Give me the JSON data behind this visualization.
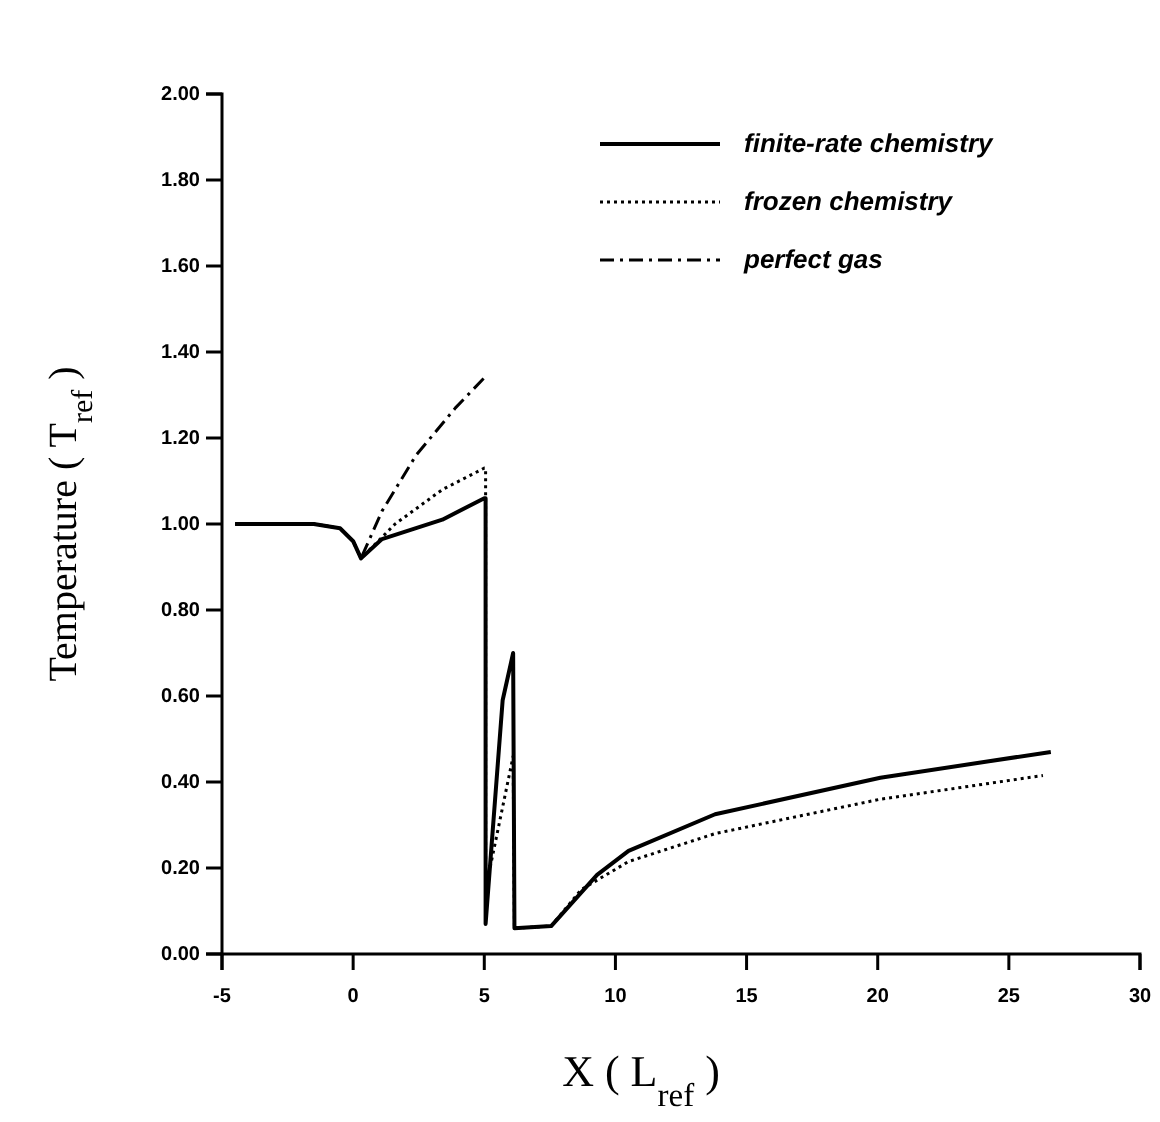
{
  "chart_data": {
    "type": "line",
    "xlabel": "X ( L$_{ref}$ )",
    "ylabel": "Temperature ( T$_{ref}$ )",
    "xlim": [
      -5,
      30
    ],
    "xticks": [
      -5,
      0,
      5,
      10,
      15,
      20,
      25,
      30
    ],
    "ylim": [
      0,
      2
    ],
    "yticks": [
      {
        "value": 0,
        "label": "0.00"
      },
      {
        "value": 0.2,
        "label": "0.20"
      },
      {
        "value": 0.4,
        "label": "0.40"
      },
      {
        "value": 0.6,
        "label": "0.60"
      },
      {
        "value": 0.8,
        "label": "0.80"
      },
      {
        "value": 1,
        "label": "1.00"
      },
      {
        "value": 1.2,
        "label": "1.20"
      },
      {
        "value": 1.4,
        "label": "1.40"
      },
      {
        "value": 1.6,
        "label": "1.60"
      },
      {
        "value": 1.8,
        "label": "1.80"
      },
      {
        "value": 2,
        "label": "2.00"
      }
    ],
    "grid": false,
    "legend": "top right",
    "marker": "none",
    "series": [
      {
        "name": "finite-rate chemistry",
        "color": "#000000",
        "line_style": "solid",
        "x": [
          -4.5,
          -1.5,
          -0.5,
          0,
          0.3,
          1.1,
          3.4,
          5,
          5.05,
          5.05,
          5.7,
          6.1,
          6.15,
          7.55,
          9.3,
          10.5,
          13.8,
          20.1,
          26.6
        ],
        "values": [
          1.0,
          1.0,
          0.99,
          0.96,
          0.92,
          0.965,
          1.01,
          1.06,
          1.06,
          0.07,
          0.59,
          0.7,
          0.06,
          0.065,
          0.184,
          0.24,
          0.325,
          0.41,
          0.47
        ]
      },
      {
        "name": "frozen chemistry",
        "color": "#000000",
        "line_style": "dotted",
        "x": [
          -4.5,
          -1.5,
          -0.5,
          0,
          0.3,
          1.6,
          3.4,
          5,
          5.05,
          5.05,
          6.1,
          6.15,
          7.55,
          8.7,
          10.5,
          13.8,
          20.1,
          26.3
        ],
        "values": [
          1.0,
          1.0,
          0.99,
          0.96,
          0.92,
          1.0,
          1.08,
          1.13,
          1.13,
          0.15,
          0.46,
          0.06,
          0.065,
          0.15,
          0.215,
          0.28,
          0.36,
          0.415
        ]
      },
      {
        "name": "perfect gas",
        "color": "#000000",
        "line_style": "dashed",
        "x": [
          -4.5,
          -1.5,
          -0.5,
          0,
          0.3,
          1.1,
          2.4,
          3.9,
          5
        ],
        "values": [
          1.0,
          1.0,
          0.99,
          0.96,
          0.92,
          1.03,
          1.16,
          1.27,
          1.34
        ]
      }
    ]
  }
}
